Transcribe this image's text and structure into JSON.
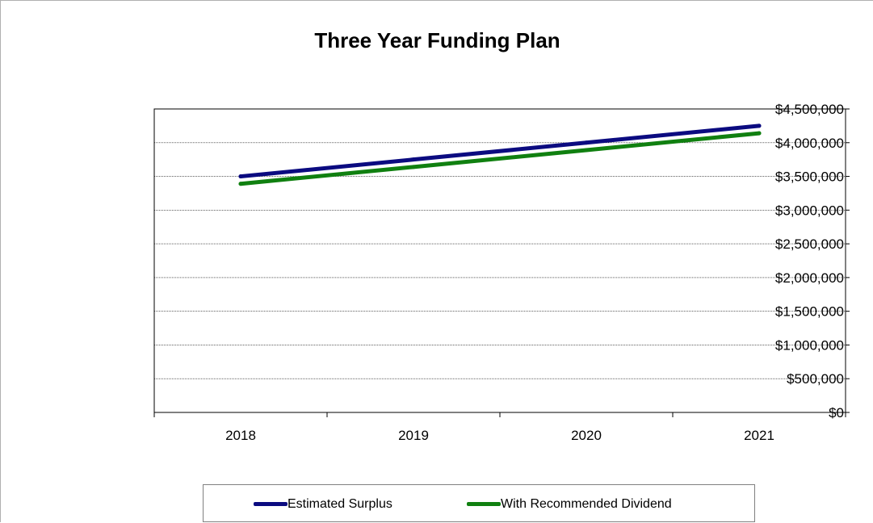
{
  "chart_data": {
    "type": "line",
    "title": "Three Year Funding Plan",
    "xlabel": "",
    "ylabel": "",
    "categories": [
      "2018",
      "2019",
      "2020",
      "2021"
    ],
    "ylim": [
      0,
      4500000
    ],
    "yticks": [
      0,
      500000,
      1000000,
      1500000,
      2000000,
      2500000,
      3000000,
      3500000,
      4000000,
      4500000
    ],
    "ytick_labels": [
      "$0",
      "$500,000",
      "$1,000,000",
      "$1,500,000",
      "$2,000,000",
      "$2,500,000",
      "$3,000,000",
      "$3,500,000",
      "$4,000,000",
      "$4,500,000"
    ],
    "grid": true,
    "legend_position": "bottom",
    "series": [
      {
        "name": "Estimated Surplus",
        "color": "#0b0b80",
        "values": [
          3500000,
          3750000,
          4000000,
          4250000
        ]
      },
      {
        "name": "With Recommended Dividend",
        "color": "#108010",
        "values": [
          3390000,
          3640000,
          3890000,
          4140000
        ]
      }
    ]
  }
}
